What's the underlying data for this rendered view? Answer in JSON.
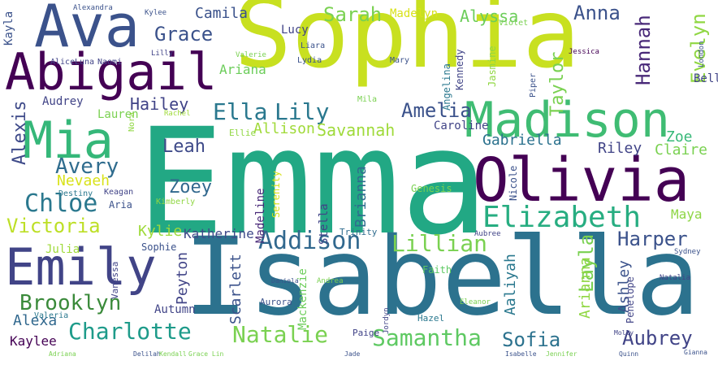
{
  "words": [
    {
      "text": "Emma",
      "color": "#22a884",
      "vertical": false
    },
    {
      "text": "Isabella",
      "color": "#2c728e",
      "vertical": false
    },
    {
      "text": "Sophia",
      "color": "#c8e020",
      "vertical": false
    },
    {
      "text": "Olivia",
      "color": "#440154",
      "vertical": false
    },
    {
      "text": "Madison",
      "color": "#3fbc73",
      "vertical": false
    },
    {
      "text": "Ava",
      "color": "#3b528b",
      "vertical": false
    },
    {
      "text": "Abigail",
      "color": "#440154",
      "vertical": false
    },
    {
      "text": "Mia",
      "color": "#35b779",
      "vertical": false
    },
    {
      "text": "Emily",
      "color": "#414487",
      "vertical": false
    },
    {
      "text": "Elizabeth",
      "color": "#27ad81",
      "vertical": false
    },
    {
      "text": "Addison",
      "color": "#31688e",
      "vertical": false
    },
    {
      "text": "Chloe",
      "color": "#2a788e",
      "vertical": false
    },
    {
      "text": "Charlotte",
      "color": "#1e9b8a",
      "vertical": false
    },
    {
      "text": "Natalie",
      "color": "#7ad151",
      "vertical": false
    },
    {
      "text": "Samantha",
      "color": "#5ec962",
      "vertical": false
    },
    {
      "text": "Lillian",
      "color": "#7ad151",
      "vertical": false
    },
    {
      "text": "Ella",
      "color": "#2a788e",
      "vertical": false
    },
    {
      "text": "Lily",
      "color": "#2a788e",
      "vertical": false
    },
    {
      "text": "Amelia",
      "color": "#3b528b",
      "vertical": false
    },
    {
      "text": "Avery",
      "color": "#2f6c8e",
      "vertical": false
    },
    {
      "text": "Brooklyn",
      "color": "#3a8a3a",
      "vertical": false
    },
    {
      "text": "Victoria",
      "color": "#bddf26",
      "vertical": false
    },
    {
      "text": "Harper",
      "color": "#3b528b",
      "vertical": false
    },
    {
      "text": "Grace",
      "color": "#3b528b",
      "vertical": false
    },
    {
      "text": "Sarah",
      "color": "#7ad151",
      "vertical": false
    },
    {
      "text": "Anna",
      "color": "#3b528b",
      "vertical": false
    },
    {
      "text": "Hannah",
      "color": "#482878",
      "vertical": true
    },
    {
      "text": "Evelyn",
      "color": "#90d743",
      "vertical": true
    },
    {
      "text": "Taylor",
      "color": "#7ad151",
      "vertical": true
    },
    {
      "text": "Aubrey",
      "color": "#414487",
      "vertical": false
    },
    {
      "text": "Sofia",
      "color": "#2c728e",
      "vertical": false
    },
    {
      "text": "Hailey",
      "color": "#404387",
      "vertical": false
    },
    {
      "text": "Zoey",
      "color": "#31688e",
      "vertical": false
    },
    {
      "text": "Leah",
      "color": "#3e4a89",
      "vertical": false
    },
    {
      "text": "Layla",
      "color": "#7ad151",
      "vertical": true
    },
    {
      "text": "Alexis",
      "color": "#3e4a89",
      "vertical": true
    },
    {
      "text": "Camila",
      "color": "#3b528b",
      "vertical": false
    },
    {
      "text": "Alyssa",
      "color": "#6ccd5a",
      "vertical": false
    },
    {
      "text": "Ariana",
      "color": "#6ccd5a",
      "vertical": false
    },
    {
      "text": "Gabriella",
      "color": "#2c728e",
      "vertical": false
    },
    {
      "text": "Savannah",
      "color": "#9fda3a",
      "vertical": false
    },
    {
      "text": "Allison",
      "color": "#a0da39",
      "vertical": false
    },
    {
      "text": "Nevaeh",
      "color": "#d8e219",
      "vertical": false
    },
    {
      "text": "Riley",
      "color": "#414487",
      "vertical": false
    },
    {
      "text": "Claire",
      "color": "#7ad151",
      "vertical": false
    },
    {
      "text": "Zoe",
      "color": "#37b878",
      "vertical": false
    },
    {
      "text": "Maya",
      "color": "#8ed645",
      "vertical": false
    },
    {
      "text": "Kylie",
      "color": "#9fda3a",
      "vertical": false
    },
    {
      "text": "Katherine",
      "color": "#3e4a89",
      "vertical": false
    },
    {
      "text": "Brianna",
      "color": "#2f6c8e",
      "vertical": true
    },
    {
      "text": "Peyton",
      "color": "#414487",
      "vertical": true
    },
    {
      "text": "Scarlett",
      "color": "#3b528b",
      "vertical": true
    },
    {
      "text": "Autumn",
      "color": "#414487",
      "vertical": false
    },
    {
      "text": "Alexa",
      "color": "#31688e",
      "vertical": false
    },
    {
      "text": "Kaylee",
      "color": "#440154",
      "vertical": false
    },
    {
      "text": "Julia",
      "color": "#9fda3a",
      "vertical": false
    },
    {
      "text": "Sophie",
      "color": "#3b528b",
      "vertical": false
    },
    {
      "text": "Aaliyah",
      "color": "#2a788e",
      "vertical": true
    },
    {
      "text": "Arianna",
      "color": "#90d743",
      "vertical": true
    },
    {
      "text": "Ashley",
      "color": "#3b528b",
      "vertical": true
    },
    {
      "text": "Mackenzie",
      "color": "#6ccd5a",
      "vertical": true
    },
    {
      "text": "Audrey",
      "color": "#414487",
      "vertical": false
    },
    {
      "text": "Lauren",
      "color": "#7ad151",
      "vertical": false
    },
    {
      "text": "Caroline",
      "color": "#414487",
      "vertical": false
    },
    {
      "text": "Kayla",
      "color": "#3b528b",
      "vertical": true
    },
    {
      "text": "Bella",
      "color": "#414487",
      "vertical": false
    },
    {
      "text": "Lucy",
      "color": "#404387",
      "vertical": false
    },
    {
      "text": "Madelyn",
      "color": "#d8e219",
      "vertical": false
    },
    {
      "text": "Stella",
      "color": "#414487",
      "vertical": true
    },
    {
      "text": "Madeline",
      "color": "#482878",
      "vertical": true
    },
    {
      "text": "Serenity",
      "color": "#d8e219",
      "vertical": true
    },
    {
      "text": "Penelope",
      "color": "#414487",
      "vertical": true
    },
    {
      "text": "Kennedy",
      "color": "#414487",
      "vertical": true
    },
    {
      "text": "Jasmine",
      "color": "#90d743",
      "vertical": true
    },
    {
      "text": "Angelina",
      "color": "#2a788e",
      "vertical": true
    },
    {
      "text": "Genesis",
      "color": "#7ad151",
      "vertical": false
    },
    {
      "text": "Aria",
      "color": "#3b528b",
      "vertical": false
    },
    {
      "text": "Nicole",
      "color": "#3b528b",
      "vertical": true
    },
    {
      "text": "Faith",
      "color": "#5ec962",
      "vertical": false
    },
    {
      "text": "Trinity",
      "color": "#2f6c8e",
      "vertical": false
    },
    {
      "text": "Valeria",
      "color": "#2a788e",
      "vertical": false
    },
    {
      "text": "Vanessa",
      "color": "#404387",
      "vertical": true
    },
    {
      "text": "Aurora",
      "color": "#3b528b",
      "vertical": false
    },
    {
      "text": "Paige",
      "color": "#404387",
      "vertical": false
    },
    {
      "text": "Hazel",
      "color": "#2a788e",
      "vertical": false
    },
    {
      "text": "Ellie",
      "color": "#90d743",
      "vertical": false
    },
    {
      "text": "Kimberly",
      "color": "#90d743",
      "vertical": false
    },
    {
      "text": "Destiny",
      "color": "#2a788e",
      "vertical": false
    },
    {
      "text": "Keagan",
      "color": "#404387",
      "vertical": false
    },
    {
      "text": "Nora",
      "color": "#90d743",
      "vertical": true
    },
    {
      "text": "Lydia",
      "color": "#3b528b",
      "vertical": false
    },
    {
      "text": "Liara",
      "color": "#3b528b",
      "vertical": false
    },
    {
      "text": "Mary",
      "color": "#3b528b",
      "vertical": false
    },
    {
      "text": "Valerie",
      "color": "#7ad151",
      "vertical": false
    },
    {
      "text": "Rachel",
      "color": "#9fda3a",
      "vertical": false
    },
    {
      "text": "Alice",
      "color": "#404387",
      "vertical": false
    },
    {
      "text": "Luna",
      "color": "#404387",
      "vertical": false
    },
    {
      "text": "Naomi",
      "color": "#404387",
      "vertical": false
    },
    {
      "text": "Lilly",
      "color": "#404387",
      "vertical": false
    },
    {
      "text": "Mila",
      "color": "#7ad151",
      "vertical": false
    },
    {
      "text": "Violet",
      "color": "#7ad151",
      "vertical": false
    },
    {
      "text": "Piper",
      "color": "#3b528b",
      "vertical": true
    },
    {
      "text": "Jessica",
      "color": "#440154",
      "vertical": false
    },
    {
      "text": "London",
      "color": "#3b528b",
      "vertical": true
    },
    {
      "text": "Sydney",
      "color": "#3b528b",
      "vertical": false
    },
    {
      "text": "Natalia",
      "color": "#414487",
      "vertical": false
    },
    {
      "text": "Molly",
      "color": "#404387",
      "vertical": false
    },
    {
      "text": "Kylee",
      "color": "#3b528b",
      "vertical": false
    },
    {
      "text": "Alexandra",
      "color": "#3b528b",
      "vertical": false
    },
    {
      "text": "Aubree",
      "color": "#404387",
      "vertical": false
    },
    {
      "text": "Eleanor",
      "color": "#7ad151",
      "vertical": false
    },
    {
      "text": "Andrea",
      "color": "#7ad151",
      "vertical": false
    },
    {
      "text": "Jordyn",
      "color": "#404387",
      "vertical": true
    },
    {
      "text": "Daniela",
      "color": "#3b528b",
      "vertical": false
    },
    {
      "text": "Gianna",
      "color": "#3b528b",
      "vertical": false
    },
    {
      "text": "Quinn",
      "color": "#3b528b",
      "vertical": false
    },
    {
      "text": "Isabelle",
      "color": "#3b528b",
      "vertical": false
    },
    {
      "text": "Jennifer",
      "color": "#7ad151",
      "vertical": false
    },
    {
      "text": "Jade",
      "color": "#3b528b",
      "vertical": false
    },
    {
      "text": "Delilah",
      "color": "#3b528b",
      "vertical": false
    },
    {
      "text": "Grace Lin",
      "color": "#7ad151",
      "vertical": false
    },
    {
      "text": "Kendall",
      "color": "#7ad151",
      "vertical": false
    },
    {
      "text": "Adriana",
      "color": "#7ad151",
      "vertical": false
    }
  ]
}
